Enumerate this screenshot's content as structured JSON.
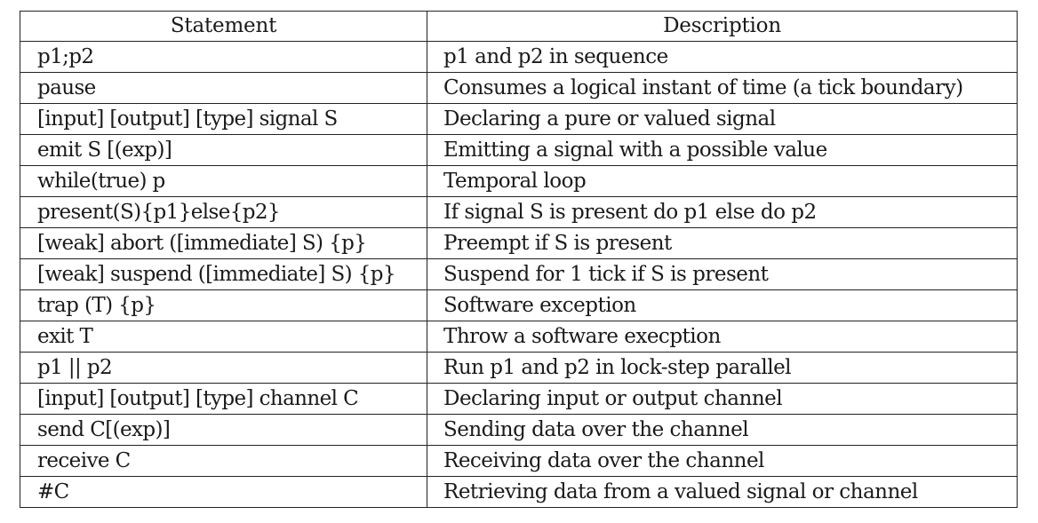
{
  "table": {
    "headers": [
      "Statement",
      "Description"
    ],
    "rows": [
      {
        "statement": "p1;p2",
        "description": "p1 and p2 in sequence"
      },
      {
        "statement": "pause",
        "description": "Consumes a logical instant of time (a tick boundary)"
      },
      {
        "statement": "[input] [output] [type] signal S",
        "description": "Declaring a pure or valued signal"
      },
      {
        "statement": "emit S [(exp)]",
        "description": "Emitting a signal with a possible value"
      },
      {
        "statement": "while(true) p",
        "description": "Temporal loop"
      },
      {
        "statement": "present(S){p1}else{p2}",
        "description": "If signal S is present do p1 else do p2"
      },
      {
        "statement": "[weak] abort ([immediate] S) {p}",
        "description": "Preempt if S is present"
      },
      {
        "statement": "[weak] suspend ([immediate] S) {p}",
        "description": "Suspend for 1 tick if S is present"
      },
      {
        "statement": "trap (T) {p}",
        "description": "Software exception"
      },
      {
        "statement": "exit T",
        "description": "Throw a software execption"
      },
      {
        "statement": "p1 || p2",
        "description": "Run p1 and p2 in lock-step parallel"
      },
      {
        "statement": "[input] [output] [type] channel C",
        "description": "Declaring input or output channel"
      },
      {
        "statement": "send C[(exp)]",
        "description": "Sending data over the channel"
      },
      {
        "statement": "receive C",
        "description": "Receiving data over the channel"
      },
      {
        "statement": "#C",
        "description": "Retrieving data from a valued signal or channel"
      }
    ]
  }
}
